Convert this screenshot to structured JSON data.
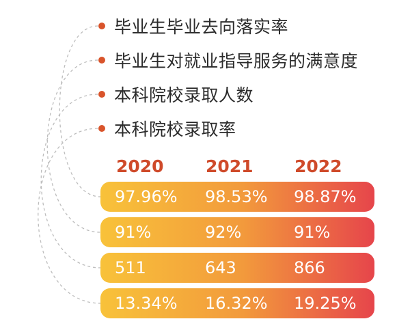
{
  "indicators": [
    "毕业生毕业去向落实率",
    "毕业生对就业指导服务的满意度",
    "本科院校录取人数",
    "本科院校录取率"
  ],
  "years": [
    "2020",
    "2021",
    "2022"
  ],
  "rows": [
    [
      "97.96%",
      "98.53%",
      "98.87%"
    ],
    [
      "91%",
      "92%",
      "91%"
    ],
    [
      "511",
      "643",
      "866"
    ],
    [
      "13.34%",
      "16.32%",
      "19.25%"
    ]
  ],
  "colors": {
    "accent": "#d9542b",
    "year_text": "#cf4a2a",
    "bar_start": "#f8c23a",
    "bar_mid": "#f29a3c",
    "bar_end": "#e6454b",
    "connector": "#bdbdbd"
  }
}
